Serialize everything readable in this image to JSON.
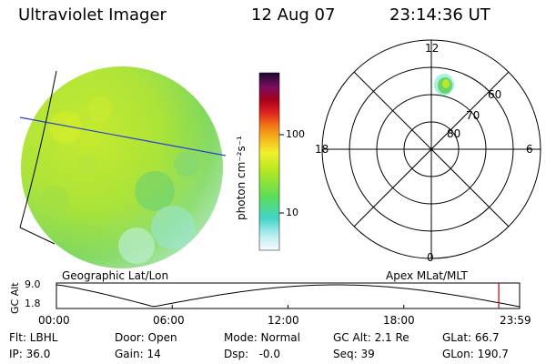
{
  "header": {
    "instrument": "Ultraviolet Imager",
    "date": "12 Aug 07",
    "time": "23:14:36 UT"
  },
  "colorbar": {
    "unit_label": "photon cm⁻²s⁻¹",
    "ticks": [
      "100",
      "10"
    ]
  },
  "polar_plot": {
    "mlt_labels": {
      "top": "12",
      "left": "18",
      "right": "6",
      "bottom": "0"
    },
    "mlat_labels": [
      "60",
      "70",
      "80"
    ]
  },
  "timeline": {
    "left_title": "Geographic Lat/Lon",
    "right_title": "Apex MLat/MLT",
    "y_axis_label": "GC Alt",
    "y_ticks": [
      "9.0",
      "1.8"
    ],
    "x_ticks": [
      "00:00",
      "06:00",
      "12:00",
      "18:00",
      "23:59"
    ],
    "current_time_fraction": 0.955,
    "line_color": "#000000",
    "marker_color": "#cc0000"
  },
  "info_rows": [
    [
      {
        "text": "Flt: LBHL"
      },
      {
        "text": "Door: Open"
      },
      {
        "text": "Mode: Normal"
      },
      {
        "text": "GC Alt: 2.1 Re"
      },
      {
        "text": "GLat: 66.7"
      }
    ],
    [
      {
        "text": "IP: 36.0"
      },
      {
        "text": "Gain: 14"
      },
      {
        "text": "Dsp:   -0.0"
      },
      {
        "text": "Seq: 39"
      },
      {
        "text": "GLon: 190.7"
      }
    ]
  ]
}
